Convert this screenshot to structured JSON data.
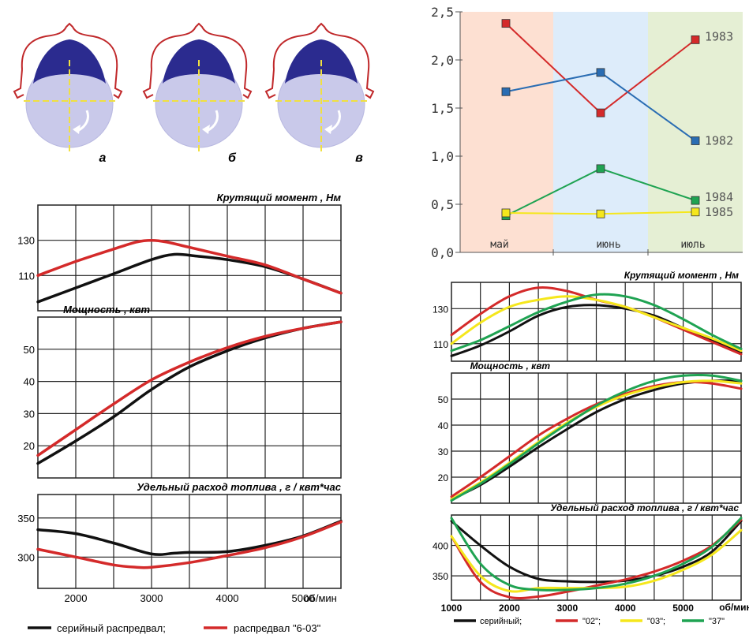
{
  "colors": {
    "red": "#d42a2a",
    "black": "#111111",
    "yellow": "#f5e71c",
    "green": "#1fa352",
    "blue": "#2a6db3",
    "cam_outline": "#c0282a",
    "cam_dark": "#2b2b8f",
    "cam_light": "#c9c9ea",
    "cam_axis": "#f0e040",
    "band_may": "#fde0d2",
    "band_june": "#ddecfa",
    "band_july": "#e5efd4"
  },
  "cams": [
    {
      "label": "а",
      "icon": "cam-profile-icon"
    },
    {
      "label": "б",
      "icon": "cam-profile-icon"
    },
    {
      "label": "в",
      "icon": "cam-profile-icon"
    }
  ],
  "legend_left": {
    "items": [
      {
        "label": "серийный  распредвал;",
        "color": "#111111"
      },
      {
        "label": "распредвал \"6-03\"",
        "color": "#d42a2a"
      }
    ]
  },
  "legend_right": {
    "items": [
      {
        "label": "серийный;",
        "color": "#111111"
      },
      {
        "label": "\"02\";",
        "color": "#d42a2a"
      },
      {
        "label": "\"03\";",
        "color": "#f5e71c"
      },
      {
        "label": "\"37\"",
        "color": "#1fa352"
      }
    ]
  },
  "chart_data": [
    {
      "id": "yearly",
      "type": "line",
      "categories": [
        "май",
        "июнь",
        "июль"
      ],
      "ylim": [
        0,
        2.5
      ],
      "yticks": [
        "0,0",
        "0,5",
        "1,0",
        "1,5",
        "2,0",
        "2,5"
      ],
      "series": [
        {
          "name": "1983",
          "color": "#d42a2a",
          "values": [
            2.38,
            1.45,
            2.21
          ]
        },
        {
          "name": "1982",
          "color": "#2a6db3",
          "values": [
            1.67,
            1.87,
            1.16
          ]
        },
        {
          "name": "1984",
          "color": "#1fa352",
          "values": [
            0.38,
            0.87,
            0.54
          ]
        },
        {
          "name": "1985",
          "color": "#f5e71c",
          "values": [
            0.41,
            0.4,
            0.42
          ]
        }
      ]
    },
    {
      "id": "left_torque",
      "type": "line",
      "title": "Крутящий  момент , Нм",
      "xlim": [
        1500,
        5500
      ],
      "ylim": [
        90,
        150
      ],
      "yticks": [
        110,
        130
      ],
      "series": [
        {
          "name": "серийный  распредвал",
          "color": "#111111",
          "x": [
            1500,
            2000,
            2500,
            3000,
            3300,
            3600,
            4000,
            4500,
            5000,
            5500
          ],
          "y": [
            95,
            103,
            111,
            119,
            122,
            121,
            119,
            115,
            108,
            100
          ]
        },
        {
          "name": "распредвал \"6-03\"",
          "color": "#d42a2a",
          "x": [
            1500,
            2000,
            2500,
            2800,
            3000,
            3200,
            3500,
            4000,
            4500,
            5000,
            5500
          ],
          "y": [
            110,
            118,
            125,
            129,
            130,
            129,
            126,
            121,
            116,
            108,
            100
          ]
        }
      ]
    },
    {
      "id": "left_power",
      "type": "line",
      "title": "Мощность , квт",
      "xlim": [
        1500,
        5500
      ],
      "ylim": [
        10,
        60
      ],
      "yticks": [
        20,
        30,
        40,
        50
      ],
      "series": [
        {
          "name": "серийный  распредвал",
          "color": "#111111",
          "x": [
            1500,
            2000,
            2500,
            3000,
            3500,
            4000,
            4500,
            5000,
            5500
          ],
          "y": [
            14.5,
            21.5,
            29,
            37.5,
            44.5,
            49.5,
            53.5,
            56.5,
            58.5
          ]
        },
        {
          "name": "распредвал \"6-03\"",
          "color": "#d42a2a",
          "x": [
            1500,
            2000,
            2500,
            3000,
            3500,
            4000,
            4500,
            5000,
            5500
          ],
          "y": [
            17,
            25,
            33,
            40.5,
            46,
            50.5,
            54,
            56.5,
            58.5
          ]
        }
      ]
    },
    {
      "id": "left_fuel",
      "type": "line",
      "title": "Удельный расход топлива , г / квт*час",
      "xlabel": "об/мин",
      "xlim": [
        1500,
        5500
      ],
      "ylim": [
        260,
        380
      ],
      "xticks": [
        2000,
        3000,
        4000,
        5000
      ],
      "yticks": [
        300,
        350
      ],
      "series": [
        {
          "name": "серийный  распредвал",
          "color": "#111111",
          "x": [
            1500,
            2000,
            2500,
            3000,
            3300,
            3500,
            4000,
            4500,
            5000,
            5500
          ],
          "y": [
            335,
            330,
            318,
            304,
            305,
            306,
            307,
            315,
            327,
            346
          ]
        },
        {
          "name": "распредвал \"6-03\"",
          "color": "#d42a2a",
          "x": [
            1500,
            2000,
            2500,
            2800,
            3000,
            3500,
            4000,
            4500,
            5000,
            5500
          ],
          "y": [
            310,
            300,
            290,
            287,
            287,
            293,
            302,
            312,
            326,
            345
          ]
        }
      ]
    },
    {
      "id": "right_torque",
      "type": "line",
      "title": "Крутящий  момент , Нм",
      "xlim": [
        1000,
        6000
      ],
      "ylim": [
        100,
        145
      ],
      "yticks": [
        110,
        130
      ],
      "series": [
        {
          "name": "серийный",
          "color": "#111111",
          "x": [
            1000,
            1500,
            2000,
            2500,
            3000,
            3500,
            4000,
            4500,
            5000,
            5500,
            6000
          ],
          "y": [
            103,
            109,
            117,
            126,
            131,
            132,
            130,
            126,
            119,
            112,
            105
          ]
        },
        {
          "name": "\"02\"",
          "color": "#d42a2a",
          "x": [
            1000,
            1500,
            2000,
            2500,
            3000,
            3500,
            4000,
            4500,
            5000,
            5500,
            6000
          ],
          "y": [
            115,
            127,
            137,
            142,
            140,
            135,
            131,
            125,
            118,
            111,
            104
          ]
        },
        {
          "name": "\"03\"",
          "color": "#f5e71c",
          "x": [
            1000,
            1500,
            2000,
            2500,
            3000,
            3500,
            4000,
            4500,
            5000,
            5500,
            6000
          ],
          "y": [
            110,
            122,
            131,
            135,
            137,
            135,
            131,
            125,
            119,
            113,
            106
          ]
        },
        {
          "name": "\"37\"",
          "color": "#1fa352",
          "x": [
            1000,
            1500,
            2000,
            2500,
            3000,
            3500,
            4000,
            4500,
            5000,
            5500,
            6000
          ],
          "y": [
            106,
            112,
            120,
            128,
            134,
            138,
            137,
            132,
            124,
            115,
            107
          ]
        }
      ]
    },
    {
      "id": "right_power",
      "type": "line",
      "title": "Мощность , квт",
      "xlim": [
        1000,
        6000
      ],
      "ylim": [
        10,
        60
      ],
      "yticks": [
        20,
        30,
        40,
        50
      ],
      "series": [
        {
          "name": "серийный",
          "color": "#111111",
          "x": [
            1000,
            1500,
            2000,
            2500,
            3000,
            3500,
            4000,
            4500,
            5000,
            5500,
            6000
          ],
          "y": [
            11.5,
            17,
            24,
            31.5,
            38.5,
            45,
            50,
            53.5,
            56,
            57,
            57
          ]
        },
        {
          "name": "\"02\"",
          "color": "#d42a2a",
          "x": [
            1000,
            1500,
            2000,
            2500,
            3000,
            3500,
            4000,
            4500,
            5000,
            5500,
            6000
          ],
          "y": [
            12.5,
            20,
            28,
            36,
            42.5,
            48,
            52,
            55,
            56.5,
            56,
            54
          ]
        },
        {
          "name": "\"03\"",
          "color": "#f5e71c",
          "x": [
            1000,
            1500,
            2000,
            2500,
            3000,
            3500,
            4000,
            4500,
            5000,
            5500,
            6000
          ],
          "y": [
            11.5,
            18,
            25.5,
            33.5,
            41,
            47,
            51.5,
            54.5,
            56.5,
            57,
            56
          ]
        },
        {
          "name": "\"37\"",
          "color": "#1fa352",
          "x": [
            1000,
            1500,
            2000,
            2500,
            3000,
            3500,
            4000,
            4500,
            5000,
            5500,
            6000
          ],
          "y": [
            11,
            17.5,
            25,
            33,
            40.5,
            47.5,
            53,
            57,
            59,
            59,
            57
          ]
        }
      ]
    },
    {
      "id": "right_fuel",
      "type": "line",
      "title": "Удельный расход топлива , г / квт*час",
      "xlabel": "об/мин",
      "xlim": [
        1000,
        6000
      ],
      "ylim": [
        310,
        450
      ],
      "xticks": [
        1000,
        2000,
        3000,
        4000,
        5000
      ],
      "xlabel_short": "об",
      "yticks": [
        350,
        400
      ],
      "series": [
        {
          "name": "серийный",
          "color": "#111111",
          "x": [
            1000,
            1500,
            2000,
            2500,
            3000,
            3500,
            4000,
            4500,
            5000,
            5500,
            6000
          ],
          "y": [
            440,
            400,
            365,
            345,
            341,
            340,
            342,
            350,
            365,
            390,
            440
          ]
        },
        {
          "name": "\"02\"",
          "color": "#d42a2a",
          "x": [
            1000,
            1500,
            2000,
            2500,
            3000,
            3500,
            4000,
            4500,
            5000,
            5500,
            6000
          ],
          "y": [
            415,
            340,
            315,
            316,
            324,
            334,
            344,
            357,
            375,
            400,
            442
          ]
        },
        {
          "name": "\"03\"",
          "color": "#f5e71c",
          "x": [
            1000,
            1500,
            2000,
            2500,
            3000,
            3500,
            4000,
            4500,
            5000,
            5500,
            6000
          ],
          "y": [
            415,
            350,
            325,
            330,
            330,
            330,
            332,
            342,
            360,
            385,
            425
          ]
        },
        {
          "name": "\"37\"",
          "color": "#1fa352",
          "x": [
            1000,
            1500,
            2000,
            2500,
            3000,
            3500,
            4000,
            4500,
            5000,
            5500,
            6000
          ],
          "y": [
            445,
            370,
            335,
            327,
            327,
            330,
            337,
            350,
            370,
            398,
            445
          ]
        }
      ]
    }
  ]
}
